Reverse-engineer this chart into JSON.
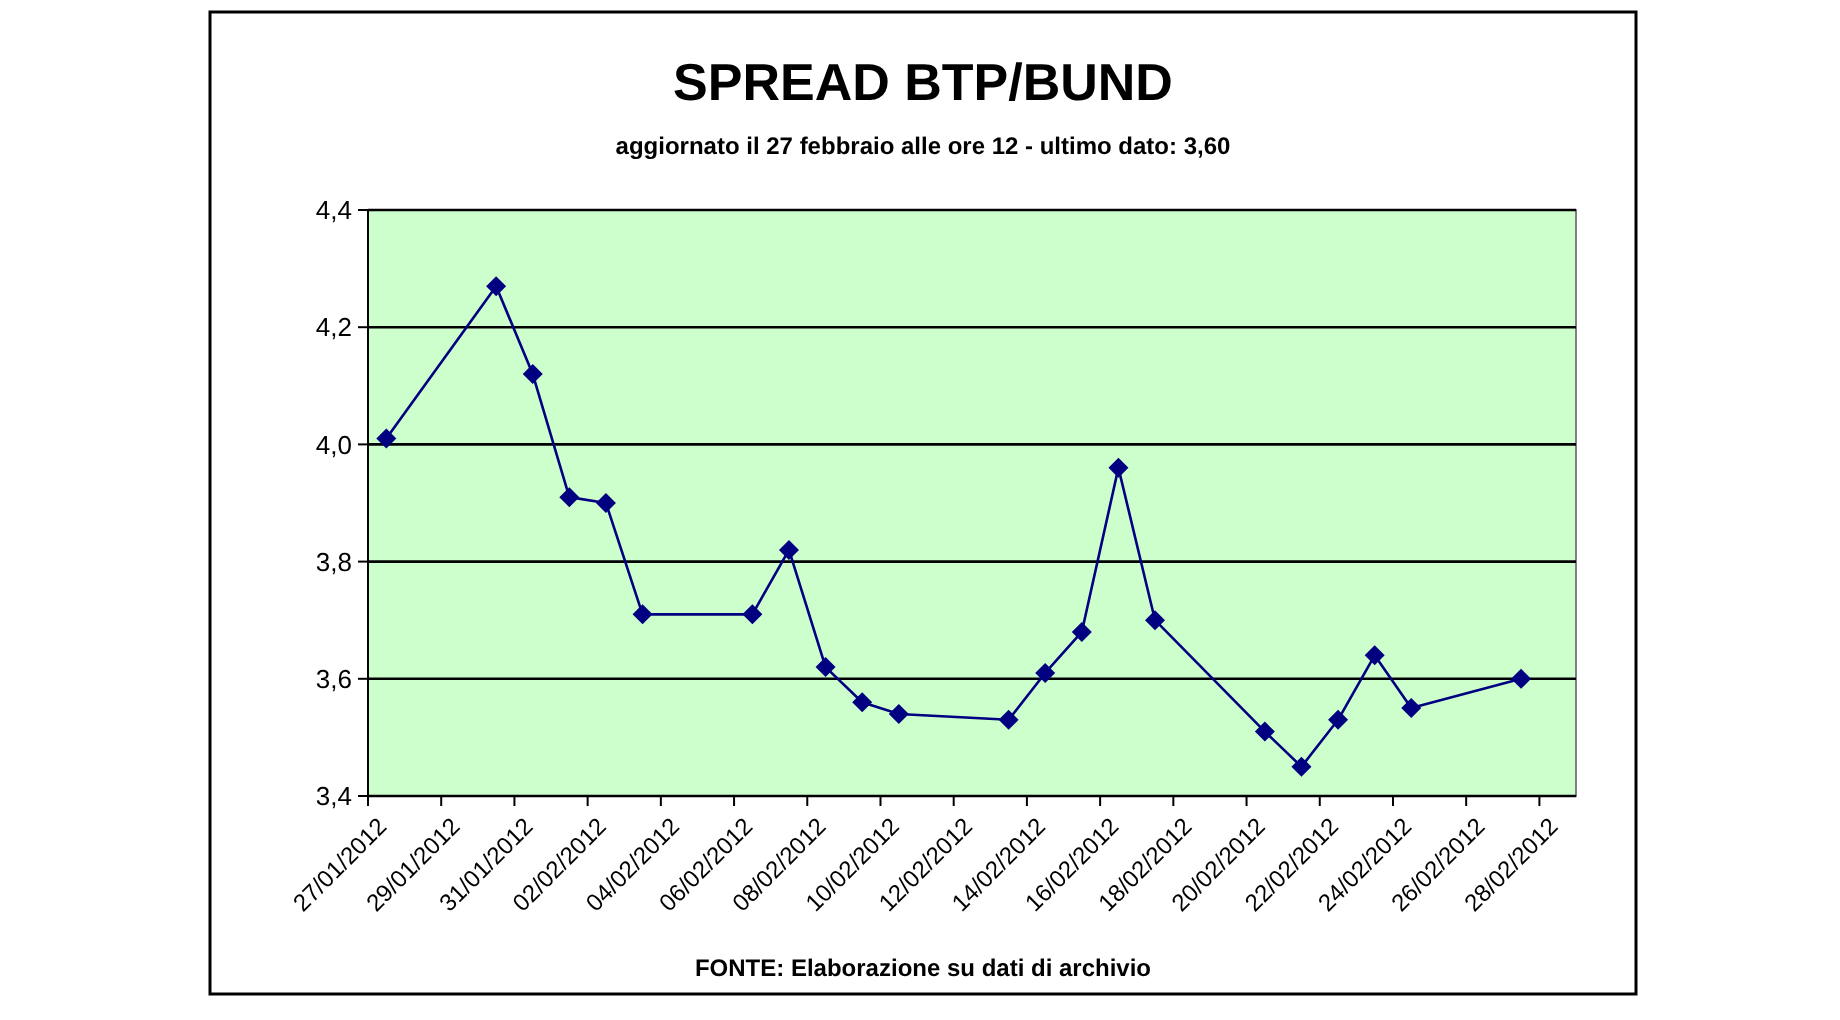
{
  "chart_data": {
    "type": "line",
    "title": "SPREAD BTP/BUND",
    "subtitle": "aggiornato il 27 febbraio alle ore 12 - ultimo dato: 3,60",
    "annotations": [
      "FONTE: Elaborazione su dati di archivio"
    ],
    "x": [
      "2012-01-27T12:00",
      "2012-01-30T12:00",
      "2012-01-31T12:00",
      "2012-02-01T12:00",
      "2012-02-02T12:00",
      "2012-02-03T12:00",
      "2012-02-06T12:00",
      "2012-02-07T12:00",
      "2012-02-08T12:00",
      "2012-02-09T12:00",
      "2012-02-10T12:00",
      "2012-02-13T12:00",
      "2012-02-14T12:00",
      "2012-02-15T12:00",
      "2012-02-16T12:00",
      "2012-02-17T12:00",
      "2012-02-20T12:00",
      "2012-02-21T12:00",
      "2012-02-22T12:00",
      "2012-02-23T12:00",
      "2012-02-24T12:00",
      "2012-02-27T12:00"
    ],
    "series": [
      {
        "color": "#000080",
        "values": [
          4.01,
          4.27,
          4.12,
          3.91,
          3.9,
          3.71,
          3.71,
          3.82,
          3.62,
          3.56,
          3.54,
          3.53,
          3.61,
          3.68,
          3.96,
          3.7,
          3.51,
          3.45,
          3.53,
          3.64,
          3.55,
          3.6
        ]
      }
    ],
    "xlim": [
      "2012-01-27",
      "2012-02-29"
    ],
    "xticks": [
      {
        "value": "2012-01-27",
        "label": "27/01/2012"
      },
      {
        "value": "2012-01-29",
        "label": "29/01/2012"
      },
      {
        "value": "2012-01-31",
        "label": "31/01/2012"
      },
      {
        "value": "2012-02-02",
        "label": "02/02/2012"
      },
      {
        "value": "2012-02-04",
        "label": "04/02/2012"
      },
      {
        "value": "2012-02-06",
        "label": "06/02/2012"
      },
      {
        "value": "2012-02-08",
        "label": "08/02/2012"
      },
      {
        "value": "2012-02-10",
        "label": "10/02/2012"
      },
      {
        "value": "2012-02-12",
        "label": "12/02/2012"
      },
      {
        "value": "2012-02-14",
        "label": "14/02/2012"
      },
      {
        "value": "2012-02-16",
        "label": "16/02/2012"
      },
      {
        "value": "2012-02-18",
        "label": "18/02/2012"
      },
      {
        "value": "2012-02-20",
        "label": "20/02/2012"
      },
      {
        "value": "2012-02-22",
        "label": "22/02/2012"
      },
      {
        "value": "2012-02-24",
        "label": "24/02/2012"
      },
      {
        "value": "2012-02-26",
        "label": "26/02/2012"
      },
      {
        "value": "2012-02-28",
        "label": "28/02/2012"
      }
    ],
    "ylim": [
      3.4,
      4.4
    ],
    "yticks": [
      {
        "value": 3.4,
        "label": "3,4"
      },
      {
        "value": 3.6,
        "label": "3,6"
      },
      {
        "value": 3.8,
        "label": "3,8"
      },
      {
        "value": 4.0,
        "label": "4,0"
      },
      {
        "value": 4.2,
        "label": "4,2"
      },
      {
        "value": 4.4,
        "label": "4,4"
      }
    ],
    "grid": "y",
    "marker": "diamond",
    "line_style": "solid"
  }
}
